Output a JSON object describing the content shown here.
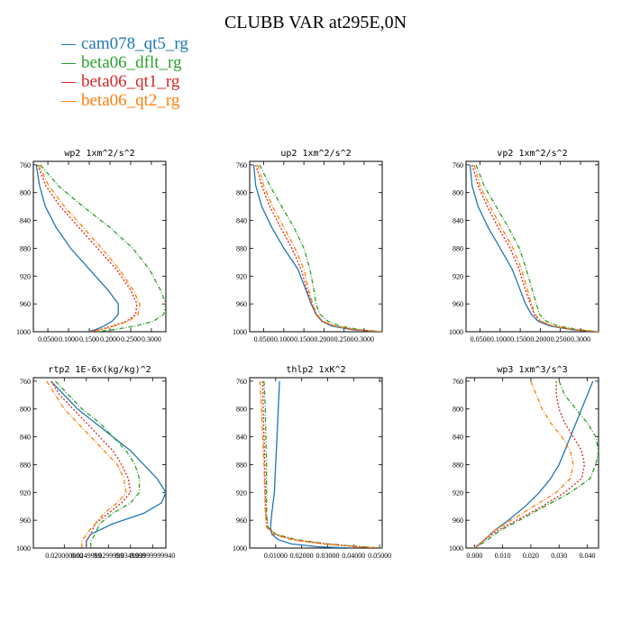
{
  "title": "CLUBB VAR at295E,0N",
  "legend": [
    {
      "name": "cam078_qt5_rg",
      "color": "#1f77b4",
      "dash": "solid"
    },
    {
      "name": "beta06_dflt_rg",
      "color": "#2ca02c",
      "dash": "dashdot"
    },
    {
      "name": "beta06_qt1_rg",
      "color": "#d62728",
      "dash": "dotted"
    },
    {
      "name": "beta06_qt2_rg",
      "color": "#ff7f0e",
      "dash": "dashdot"
    }
  ],
  "chart_data": [
    {
      "type": "line",
      "title": "wp2   1xm^2/s^2",
      "ylim": [
        1000,
        755
      ],
      "yticks": [
        760,
        800,
        840,
        880,
        920,
        960,
        1000
      ],
      "xlim": [
        0.015,
        0.335
      ],
      "xticks": [
        0.05,
        0.1,
        0.15,
        0.2,
        0.25,
        0.3
      ],
      "xticklabels": [
        "0.0500",
        "0.1000",
        "0.1500",
        "0.2000",
        "0.2500",
        "0.3000"
      ],
      "y": [
        760,
        790,
        820,
        850,
        880,
        910,
        940,
        960,
        975,
        985,
        992,
        997,
        1000
      ],
      "series": [
        {
          "name": "cam078_qt5_rg",
          "values": [
            0.022,
            0.03,
            0.044,
            0.07,
            0.105,
            0.15,
            0.195,
            0.22,
            0.22,
            0.205,
            0.185,
            0.165,
            0.145
          ]
        },
        {
          "name": "beta06_dflt_rg",
          "values": [
            0.032,
            0.075,
            0.135,
            0.2,
            0.255,
            0.295,
            0.322,
            0.335,
            0.33,
            0.305,
            0.26,
            0.21,
            0.165
          ]
        },
        {
          "name": "beta06_qt1_rg",
          "values": [
            0.025,
            0.045,
            0.08,
            0.125,
            0.17,
            0.215,
            0.25,
            0.265,
            0.262,
            0.24,
            0.205,
            0.175,
            0.15
          ]
        },
        {
          "name": "beta06_qt2_rg",
          "values": [
            0.028,
            0.052,
            0.09,
            0.135,
            0.18,
            0.222,
            0.256,
            0.272,
            0.268,
            0.245,
            0.21,
            0.178,
            0.152
          ]
        }
      ]
    },
    {
      "type": "line",
      "title": "up2   1xm^2/s^2",
      "ylim": [
        1000,
        755
      ],
      "yticks": [
        760,
        800,
        840,
        880,
        920,
        960,
        1000
      ],
      "xlim": [
        0.015,
        0.345
      ],
      "xticks": [
        0.05,
        0.1,
        0.15,
        0.2,
        0.25,
        0.3
      ],
      "xticklabels": [
        "0.0500",
        "0.1000",
        "0.1500",
        "0.2000",
        "0.2500",
        "0.3000"
      ],
      "y": [
        760,
        790,
        820,
        850,
        880,
        910,
        940,
        960,
        975,
        985,
        992,
        997,
        1000
      ],
      "series": [
        {
          "name": "cam078_qt5_rg",
          "values": [
            0.025,
            0.03,
            0.045,
            0.07,
            0.1,
            0.135,
            0.155,
            0.168,
            0.18,
            0.195,
            0.22,
            0.27,
            0.34
          ]
        },
        {
          "name": "beta06_dflt_rg",
          "values": [
            0.04,
            0.065,
            0.095,
            0.125,
            0.15,
            0.165,
            0.175,
            0.18,
            0.19,
            0.21,
            0.24,
            0.29,
            0.345
          ]
        },
        {
          "name": "beta06_qt1_rg",
          "values": [
            0.03,
            0.045,
            0.065,
            0.092,
            0.12,
            0.143,
            0.158,
            0.17,
            0.18,
            0.195,
            0.225,
            0.275,
            0.34
          ]
        },
        {
          "name": "beta06_qt2_rg",
          "values": [
            0.035,
            0.05,
            0.072,
            0.1,
            0.128,
            0.15,
            0.162,
            0.172,
            0.182,
            0.198,
            0.228,
            0.28,
            0.342
          ]
        }
      ]
    },
    {
      "type": "line",
      "title": "vp2   1xm^2/s^2",
      "ylim": [
        1000,
        755
      ],
      "yticks": [
        760,
        800,
        840,
        880,
        920,
        960,
        1000
      ],
      "xlim": [
        0.015,
        0.345
      ],
      "xticks": [
        0.05,
        0.1,
        0.15,
        0.2,
        0.25,
        0.3
      ],
      "xticklabels": [
        "0.0500",
        "0.1000",
        "0.1500",
        "0.2000",
        "0.2500",
        "0.3000"
      ],
      "y": [
        760,
        790,
        820,
        850,
        880,
        910,
        940,
        960,
        975,
        985,
        992,
        997,
        1000
      ],
      "series": [
        {
          "name": "cam078_qt5_rg",
          "values": [
            0.025,
            0.03,
            0.045,
            0.07,
            0.1,
            0.13,
            0.15,
            0.163,
            0.178,
            0.195,
            0.225,
            0.28,
            0.34
          ]
        },
        {
          "name": "beta06_dflt_rg",
          "values": [
            0.04,
            0.06,
            0.09,
            0.12,
            0.148,
            0.165,
            0.18,
            0.19,
            0.198,
            0.215,
            0.245,
            0.295,
            0.345
          ]
        },
        {
          "name": "beta06_qt1_rg",
          "values": [
            0.03,
            0.045,
            0.068,
            0.095,
            0.125,
            0.147,
            0.163,
            0.175,
            0.185,
            0.2,
            0.23,
            0.285,
            0.342
          ]
        },
        {
          "name": "beta06_qt2_rg",
          "values": [
            0.035,
            0.05,
            0.075,
            0.103,
            0.132,
            0.153,
            0.168,
            0.178,
            0.187,
            0.202,
            0.232,
            0.287,
            0.343
          ]
        }
      ]
    },
    {
      "type": "line",
      "title": "rtp2   1E-6x(kg/kg)^2",
      "ylim": [
        1000,
        755
      ],
      "yticks": [
        760,
        800,
        840,
        880,
        920,
        960,
        1000
      ],
      "xlim": [
        0.013,
        0.043
      ],
      "xticks": [
        0.02,
        0.025,
        0.03,
        0.035,
        0.04
      ],
      "xticklabels": [
        "0.020000000",
        "0.0249999",
        "0.0299999",
        "0.0349999",
        "0.03999999940"
      ],
      "y": [
        760,
        780,
        800,
        820,
        840,
        860,
        880,
        900,
        920,
        935,
        950,
        965,
        980,
        990,
        1000
      ],
      "series": [
        {
          "name": "cam078_qt5_rg",
          "values": [
            0.017,
            0.02,
            0.023,
            0.027,
            0.031,
            0.035,
            0.038,
            0.041,
            0.043,
            0.042,
            0.038,
            0.031,
            0.026,
            0.025,
            0.025
          ]
        },
        {
          "name": "beta06_dflt_rg",
          "values": [
            0.018,
            0.021,
            0.024,
            0.028,
            0.031,
            0.034,
            0.036,
            0.037,
            0.037,
            0.035,
            0.031,
            0.028,
            0.027,
            0.026,
            0.026
          ]
        },
        {
          "name": "beta06_qt1_rg",
          "values": [
            0.017,
            0.019,
            0.022,
            0.025,
            0.028,
            0.031,
            0.033,
            0.0345,
            0.035,
            0.033,
            0.03,
            0.027,
            0.026,
            0.025,
            0.025
          ]
        },
        {
          "name": "beta06_qt2_rg",
          "values": [
            0.016,
            0.018,
            0.02,
            0.023,
            0.026,
            0.029,
            0.032,
            0.0335,
            0.034,
            0.032,
            0.029,
            0.027,
            0.025,
            0.024,
            0.024
          ]
        }
      ]
    },
    {
      "type": "line",
      "title": "thlp2   1xK^2",
      "ylim": [
        1000,
        755
      ],
      "yticks": [
        760,
        800,
        840,
        880,
        920,
        960,
        1000
      ],
      "xlim": [
        0.0,
        0.051
      ],
      "xticks": [
        0.01,
        0.02,
        0.03,
        0.04,
        0.05
      ],
      "xticklabels": [
        "0.01000",
        "0.02000",
        "0.03000",
        "0.04000",
        "0.05000"
      ],
      "y": [
        760,
        800,
        840,
        880,
        920,
        950,
        970,
        980,
        988,
        994,
        998,
        1000
      ],
      "series": [
        {
          "name": "cam078_qt5_rg",
          "values": [
            0.0115,
            0.011,
            0.0105,
            0.01,
            0.0095,
            0.0085,
            0.008,
            0.0085,
            0.011,
            0.016,
            0.026,
            0.04
          ]
        },
        {
          "name": "beta06_dflt_rg",
          "values": [
            0.0055,
            0.006,
            0.0062,
            0.0065,
            0.0065,
            0.0065,
            0.007,
            0.01,
            0.018,
            0.03,
            0.043,
            0.051
          ]
        },
        {
          "name": "beta06_qt1_rg",
          "values": [
            0.005,
            0.0052,
            0.0055,
            0.0058,
            0.006,
            0.0062,
            0.0068,
            0.0095,
            0.017,
            0.029,
            0.042,
            0.05
          ]
        },
        {
          "name": "beta06_qt2_rg",
          "values": [
            0.004,
            0.0045,
            0.005,
            0.0055,
            0.0058,
            0.006,
            0.0065,
            0.009,
            0.016,
            0.028,
            0.041,
            0.0495
          ]
        }
      ]
    },
    {
      "type": "line",
      "title": "wp3   1xm^3/s^3",
      "ylim": [
        1000,
        755
      ],
      "yticks": [
        760,
        800,
        840,
        880,
        920,
        960,
        1000
      ],
      "xlim": [
        -0.003,
        0.044
      ],
      "xticks": [
        0.0,
        0.01,
        0.02,
        0.03,
        0.04
      ],
      "xticklabels": [
        "0.000",
        "0.010",
        "0.020",
        "0.030",
        "0.040"
      ],
      "y": [
        760,
        780,
        800,
        820,
        840,
        860,
        880,
        900,
        920,
        940,
        960,
        975,
        990,
        1000
      ],
      "series": [
        {
          "name": "cam078_qt5_rg",
          "values": [
            0.042,
            0.04,
            0.038,
            0.036,
            0.034,
            0.032,
            0.03,
            0.027,
            0.023,
            0.018,
            0.012,
            0.007,
            0.003,
            0.0
          ]
        },
        {
          "name": "beta06_dflt_rg",
          "values": [
            0.03,
            0.032,
            0.036,
            0.04,
            0.043,
            0.044,
            0.043,
            0.041,
            0.034,
            0.025,
            0.016,
            0.009,
            0.004,
            0.0
          ]
        },
        {
          "name": "beta06_qt1_rg",
          "values": [
            0.029,
            0.029,
            0.03,
            0.032,
            0.035,
            0.038,
            0.039,
            0.038,
            0.032,
            0.024,
            0.015,
            0.008,
            0.003,
            0.0
          ]
        },
        {
          "name": "beta06_qt2_rg",
          "values": [
            0.02,
            0.022,
            0.024,
            0.027,
            0.031,
            0.034,
            0.035,
            0.034,
            0.029,
            0.021,
            0.013,
            0.007,
            0.003,
            0.0
          ]
        }
      ]
    }
  ]
}
